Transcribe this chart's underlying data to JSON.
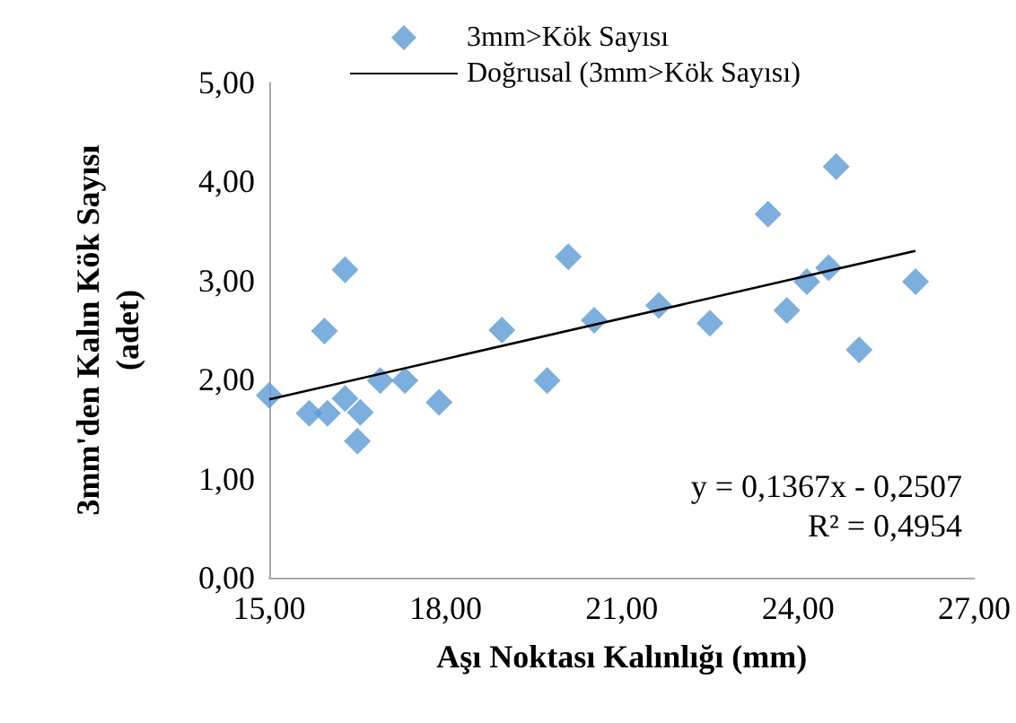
{
  "chart_data": {
    "type": "scatter",
    "xlabel": "Aşı Noktası Kalınlığı (mm)",
    "ylabel": "3mm'den Kalın Kök Sayısı (adet)",
    "xlim": [
      15,
      27
    ],
    "xticks": [
      {
        "value": 15,
        "label": "15,00"
      },
      {
        "value": 18,
        "label": "18,00"
      },
      {
        "value": 21,
        "label": "21,00"
      },
      {
        "value": 24,
        "label": "24,00"
      },
      {
        "value": 27,
        "label": "27,00"
      }
    ],
    "ylim": [
      0,
      5
    ],
    "yticks": [
      {
        "value": 0,
        "label": "0,00"
      },
      {
        "value": 1,
        "label": "1,00"
      },
      {
        "value": 2,
        "label": "2,00"
      },
      {
        "value": 3,
        "label": "3,00"
      },
      {
        "value": 4,
        "label": "4,00"
      },
      {
        "value": 5,
        "label": "5,00"
      }
    ],
    "series": [
      {
        "name": "3mm>Kök Sayısı",
        "color": "#5b9bd5",
        "marker": "diamond",
        "x": [
          15.0,
          15.68,
          15.94,
          15.99,
          16.29,
          16.29,
          16.55,
          16.5,
          16.89,
          17.31,
          17.89,
          18.96,
          19.73,
          20.09,
          20.53,
          21.63,
          22.5,
          23.49,
          23.81,
          24.15,
          24.52,
          24.65,
          25.04,
          26.0
        ],
        "values": [
          1.84,
          1.66,
          2.49,
          1.66,
          3.11,
          1.81,
          1.67,
          1.38,
          1.99,
          1.99,
          1.77,
          2.5,
          1.99,
          3.24,
          2.6,
          2.75,
          2.57,
          3.67,
          2.7,
          2.99,
          3.13,
          4.15,
          2.3,
          2.99
        ]
      },
      {
        "name": "Doğrusal (3mm>Kök Sayısı)",
        "type": "line",
        "color": "#000000",
        "marker": "none",
        "x": [
          15,
          26
        ],
        "values": [
          1.8,
          3.3
        ]
      }
    ],
    "annotations": [
      "y = 0,1367x - 0,2507",
      "R² = 0,4954"
    ],
    "legend": "top",
    "grid": false
  }
}
